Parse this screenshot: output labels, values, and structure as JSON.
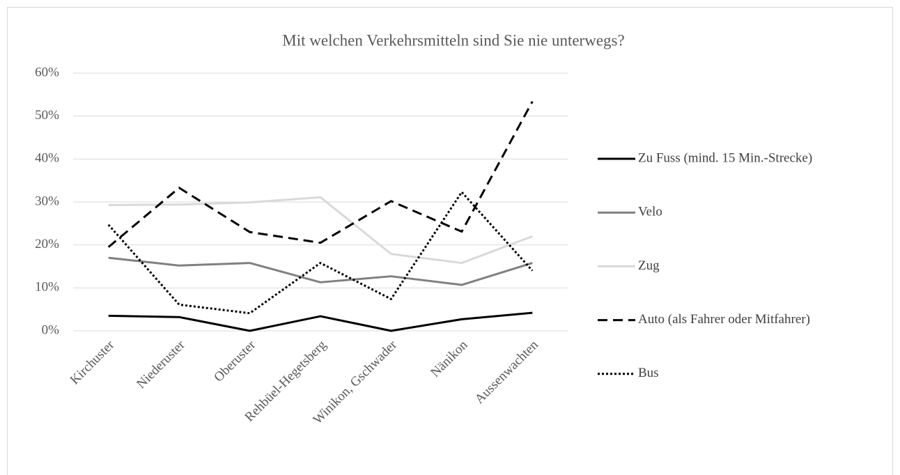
{
  "chart_data": {
    "type": "line",
    "title": "Mit welchen Verkehrsmitteln sind Sie nie unterwegs?",
    "categories": [
      "Kirchuster",
      "Niederuster",
      "Oberuster",
      "Rehbüel-Hegetsberg",
      "Winikon, Gschwader",
      "Nänikon",
      "Aussenwachten"
    ],
    "series": [
      {
        "name": "Zu Fuss (mind. 15 Min.-Strecke)",
        "color": "#000000",
        "dash": "solid",
        "values": [
          3.5,
          3.2,
          0,
          3.4,
          0,
          2.7,
          4.2
        ]
      },
      {
        "name": "Velo",
        "color": "#808080",
        "dash": "solid",
        "values": [
          17,
          15.2,
          15.8,
          11.3,
          12.7,
          10.7,
          15.8
        ]
      },
      {
        "name": "Zug",
        "color": "#d9d9d9",
        "dash": "solid",
        "values": [
          29.3,
          29.4,
          29.9,
          31.1,
          17.9,
          15.8,
          22
        ]
      },
      {
        "name": "Auto (als Fahrer oder Mitfahrer)",
        "color": "#000000",
        "dash": "dashed",
        "values": [
          19.5,
          33.3,
          23,
          20.5,
          30.2,
          23.1,
          53.4
        ]
      },
      {
        "name": "Bus",
        "color": "#000000",
        "dash": "dotted",
        "values": [
          24.7,
          6.1,
          4.1,
          15.8,
          7.4,
          32.3,
          14
        ]
      }
    ],
    "ylim": [
      0,
      60
    ],
    "yticks": [
      {
        "value": 0,
        "label": "0%"
      },
      {
        "value": 10,
        "label": "10%"
      },
      {
        "value": 20,
        "label": "20%"
      },
      {
        "value": 30,
        "label": "30%"
      },
      {
        "value": 40,
        "label": "40%"
      },
      {
        "value": 50,
        "label": "50%"
      },
      {
        "value": 60,
        "label": "60%"
      }
    ],
    "grid": true,
    "legend": "right"
  }
}
